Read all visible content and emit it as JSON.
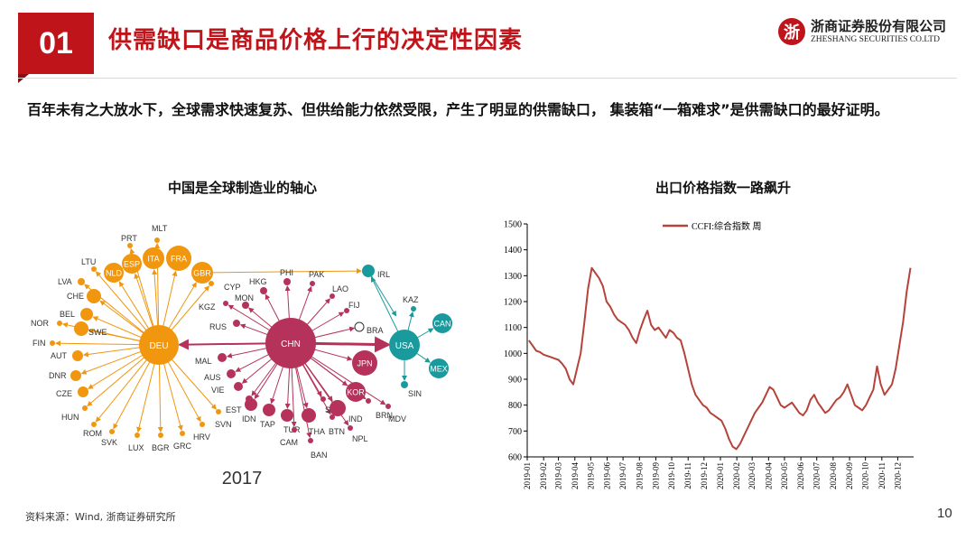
{
  "header": {
    "badge": "01",
    "title": "供需缺口是商品价格上行的决定性因素",
    "logo_symbol": "浙",
    "logo_cn": "浙商证券股份有限公司",
    "logo_en": "ZHESHANG SECURITIES CO.LTD"
  },
  "intro": "百年未有之大放水下，全球需求快速复苏、但供给能力依然受限，产生了明显的供需缺口， 集装箱“一箱难求”是供需缺口的最好证明。",
  "left_panel": {
    "subtitle": "中国是全球制造业的轴心",
    "year": "2017",
    "colors": {
      "deu": "#f0960f",
      "chn": "#b5335b",
      "usa": "#1a9a9c"
    },
    "hubs": [
      "DEU",
      "CHN",
      "USA"
    ],
    "labelled_nodes": [
      "NLD",
      "ESP",
      "ITA",
      "FRA",
      "GBR",
      "JPN",
      "KOR",
      "CAN",
      "MEX"
    ],
    "outer_labels": [
      "PRT",
      "MLT",
      "LTU",
      "LVA",
      "CHE",
      "BEL",
      "SWE",
      "NOR",
      "FIN",
      "AUT",
      "DNR",
      "CZE",
      "HUN",
      "ROM",
      "SVK",
      "LUX",
      "BGR",
      "GRC",
      "HRV",
      "SVN",
      "CYP",
      "HKG",
      "PHI",
      "PAK",
      "LAO",
      "FIJ",
      "BRA",
      "KGZ",
      "MON",
      "RUS",
      "MAL",
      "AUS",
      "VIE",
      "EST",
      "IDN",
      "TAP",
      "TUR",
      "CAM",
      "THA",
      "BAN",
      "BTN",
      "SRI",
      "IND",
      "NPL",
      "BRN",
      "MDV",
      "SIN",
      "KAZ",
      "IRL"
    ]
  },
  "chart_data": {
    "type": "line",
    "title": "出口价格指数一路飙升",
    "series": [
      {
        "name": "CCFI:综合指数 周",
        "color": "#b5433b",
        "x": [
          "2019-01-04",
          "2019-01-11",
          "2019-01-18",
          "2019-01-25",
          "2019-02-01",
          "2019-02-08",
          "2019-02-15",
          "2019-02-22",
          "2019-03-01",
          "2019-03-08",
          "2019-03-15",
          "2019-03-22",
          "2019-03-29",
          "2019-04-05",
          "2019-04-12",
          "2019-04-19",
          "2019-04-26",
          "2019-05-03",
          "2019-05-10",
          "2019-05-17",
          "2019-05-24",
          "2019-05-31",
          "2019-06-07",
          "2019-06-14",
          "2019-06-21",
          "2019-06-28",
          "2019-07-05",
          "2019-07-12",
          "2019-07-19",
          "2019-07-26",
          "2019-08-02",
          "2019-08-09",
          "2019-08-16",
          "2019-08-23",
          "2019-08-30",
          "2019-09-06",
          "2019-09-13",
          "2019-09-20",
          "2019-09-27",
          "2019-10-04",
          "2019-10-11",
          "2019-10-18",
          "2019-10-25",
          "2019-11-01",
          "2019-11-08",
          "2019-11-15",
          "2019-11-22",
          "2019-11-29",
          "2019-12-06",
          "2019-12-13",
          "2019-12-20",
          "2019-12-27",
          "2020-01-03",
          "2020-01-10",
          "2020-01-17",
          "2020-01-24",
          "2020-01-31",
          "2020-02-07",
          "2020-02-14",
          "2020-02-21",
          "2020-02-28",
          "2020-03-06",
          "2020-03-13",
          "2020-03-20",
          "2020-03-27",
          "2020-04-03",
          "2020-04-10",
          "2020-04-17",
          "2020-04-24",
          "2020-05-01",
          "2020-05-08",
          "2020-05-15",
          "2020-05-22",
          "2020-05-29",
          "2020-06-05",
          "2020-06-12",
          "2020-06-19",
          "2020-06-26",
          "2020-07-03",
          "2020-07-10",
          "2020-07-17",
          "2020-07-24",
          "2020-07-31",
          "2020-08-07",
          "2020-08-14",
          "2020-08-21",
          "2020-08-28",
          "2020-09-04",
          "2020-09-11",
          "2020-09-18",
          "2020-09-25",
          "2020-10-02",
          "2020-10-09",
          "2020-10-16",
          "2020-10-23",
          "2020-10-30",
          "2020-11-06",
          "2020-11-13",
          "2020-11-20",
          "2020-11-27",
          "2020-12-04",
          "2020-12-11",
          "2020-12-18",
          "2020-12-25"
        ],
        "values": [
          1050,
          1030,
          1010,
          1005,
          995,
          990,
          985,
          980,
          975,
          960,
          940,
          900,
          880,
          940,
          1000,
          1120,
          1250,
          1330,
          1310,
          1290,
          1260,
          1200,
          1180,
          1150,
          1130,
          1120,
          1110,
          1090,
          1060,
          1040,
          1090,
          1130,
          1165,
          1110,
          1090,
          1100,
          1080,
          1060,
          1090,
          1080,
          1060,
          1050,
          1000,
          940,
          880,
          840,
          820,
          800,
          790,
          770,
          760,
          750,
          740,
          710,
          670,
          640,
          630,
          650,
          680,
          710,
          740,
          770,
          790,
          810,
          840,
          870,
          860,
          830,
          800,
          790,
          800,
          810,
          790,
          770,
          760,
          780,
          820,
          840,
          810,
          790,
          770,
          780,
          800,
          820,
          830,
          850,
          880,
          840,
          800,
          790,
          780,
          800,
          830,
          860,
          950,
          880,
          840,
          860,
          880,
          940,
          1030,
          1120,
          1240,
          1330
        ]
      }
    ],
    "x_tick_labels": [
      "2019-01",
      "2019-02",
      "2019-03",
      "2019-04",
      "2019-05",
      "2019-06",
      "2019-07",
      "2019-08",
      "2019-09",
      "2019-10",
      "2019-11",
      "2019-12",
      "2020-01",
      "2020-02",
      "2020-03",
      "2020-04",
      "2020-05",
      "2020-06",
      "2020-07",
      "2020-08",
      "2020-09",
      "2020-10",
      "2020-11",
      "2020-12"
    ],
    "ylim": [
      600,
      1500
    ],
    "y_ticks": [
      600,
      700,
      800,
      900,
      1000,
      1100,
      1200,
      1300,
      1400,
      1500
    ],
    "grid": false,
    "legend_position": "top-left"
  },
  "footer": {
    "source": "资料来源：Wind, 浙商证券研究所",
    "page": "10"
  }
}
